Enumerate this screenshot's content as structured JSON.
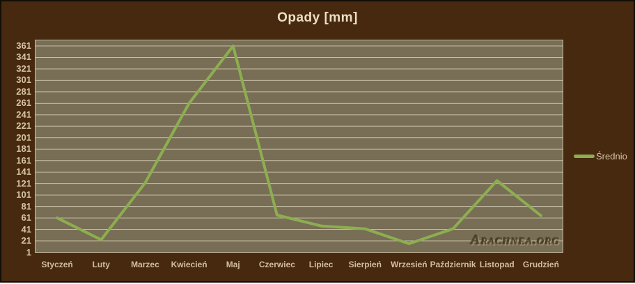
{
  "title": "Opady [mm]",
  "legend": {
    "label": "Średnio"
  },
  "watermark": "Arachnea.org",
  "chart_data": {
    "type": "line",
    "title": "Opady [mm]",
    "categories": [
      "Styczeń",
      "Luty",
      "Marzec",
      "Kwiecień",
      "Maj",
      "Czerwiec",
      "Lipiec",
      "Sierpień",
      "Wrzesień",
      "Październik",
      "Listopad",
      "Grudzień"
    ],
    "series": [
      {
        "name": "Średnio",
        "values": [
          61,
          23,
          122,
          261,
          361,
          66,
          47,
          42,
          16,
          42,
          126,
          65
        ]
      }
    ],
    "xlabel": "",
    "ylabel": "",
    "ylim": [
      1,
      361
    ],
    "ytick_step": 20,
    "grid": true,
    "legend_position": "right"
  },
  "colors": {
    "background": "#46290f",
    "plot_background": "#786d55",
    "gridline": "#c9c0a8",
    "series_line": "#8dae50",
    "title_text": "#ecdec4",
    "axis_text": "#d8c5a4",
    "watermark_text": "#52442c",
    "outer_border": "#120d07"
  }
}
